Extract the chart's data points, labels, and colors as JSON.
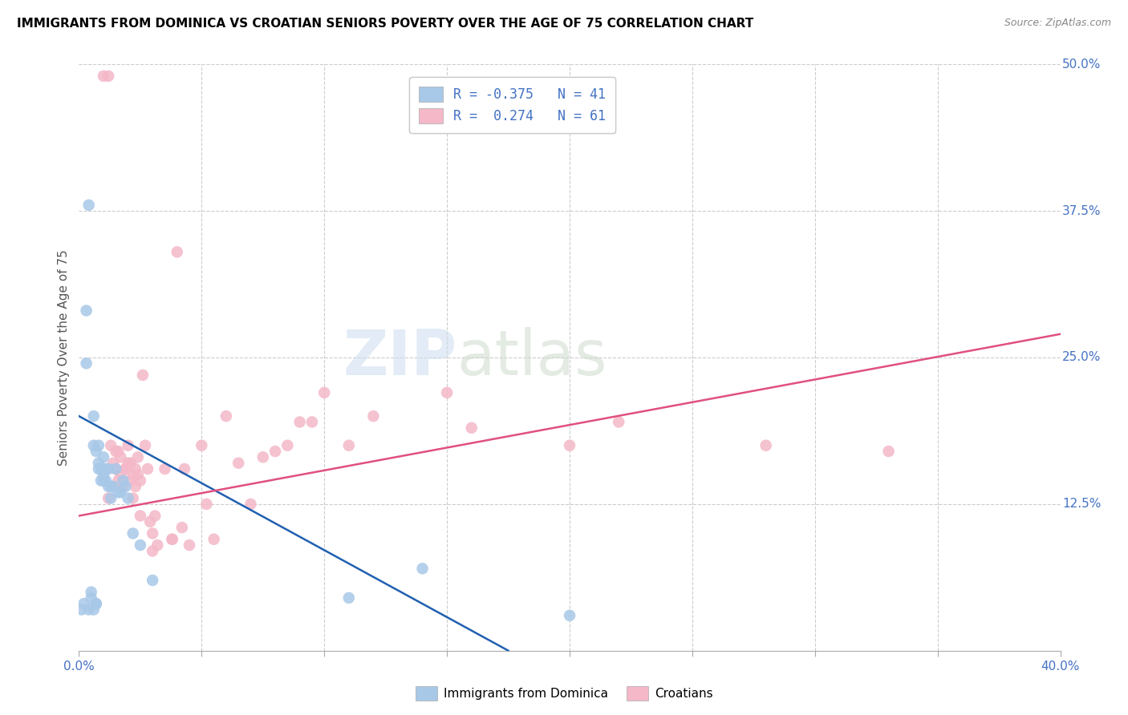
{
  "title": "IMMIGRANTS FROM DOMINICA VS CROATIAN SENIORS POVERTY OVER THE AGE OF 75 CORRELATION CHART",
  "source": "Source: ZipAtlas.com",
  "ylabel": "Seniors Poverty Over the Age of 75",
  "xlim": [
    0.0,
    0.4
  ],
  "ylim": [
    0.0,
    0.5
  ],
  "yticks_right": [
    0.125,
    0.25,
    0.375,
    0.5
  ],
  "yticklabels_right": [
    "12.5%",
    "25.0%",
    "37.5%",
    "50.0%"
  ],
  "legend_blue_label": "R = -0.375   N = 41",
  "legend_pink_label": "R =  0.274   N = 61",
  "legend1_label": "Immigrants from Dominica",
  "legend2_label": "Croatians",
  "blue_color": "#a8c8e8",
  "pink_color": "#f4b8c8",
  "blue_line_color": "#2060b0",
  "pink_line_color": "#e05080",
  "watermark_zip": "ZIP",
  "watermark_atlas": "atlas",
  "blue_scatter_x": [
    0.001,
    0.002,
    0.003,
    0.003,
    0.004,
    0.004,
    0.005,
    0.005,
    0.006,
    0.006,
    0.006,
    0.007,
    0.007,
    0.007,
    0.008,
    0.008,
    0.008,
    0.009,
    0.009,
    0.01,
    0.01,
    0.01,
    0.011,
    0.011,
    0.012,
    0.012,
    0.013,
    0.013,
    0.014,
    0.015,
    0.016,
    0.017,
    0.018,
    0.019,
    0.02,
    0.022,
    0.025,
    0.03,
    0.11,
    0.14,
    0.2
  ],
  "blue_scatter_y": [
    0.035,
    0.04,
    0.245,
    0.29,
    0.38,
    0.035,
    0.045,
    0.05,
    0.175,
    0.2,
    0.035,
    0.04,
    0.17,
    0.04,
    0.155,
    0.16,
    0.175,
    0.145,
    0.155,
    0.165,
    0.145,
    0.15,
    0.145,
    0.155,
    0.14,
    0.155,
    0.13,
    0.14,
    0.14,
    0.155,
    0.135,
    0.135,
    0.145,
    0.14,
    0.13,
    0.1,
    0.09,
    0.06,
    0.045,
    0.07,
    0.03
  ],
  "pink_scatter_x": [
    0.01,
    0.012,
    0.012,
    0.013,
    0.014,
    0.015,
    0.015,
    0.016,
    0.016,
    0.017,
    0.017,
    0.018,
    0.019,
    0.019,
    0.02,
    0.02,
    0.021,
    0.021,
    0.022,
    0.022,
    0.023,
    0.023,
    0.024,
    0.024,
    0.025,
    0.025,
    0.026,
    0.027,
    0.028,
    0.029,
    0.03,
    0.03,
    0.031,
    0.032,
    0.035,
    0.038,
    0.038,
    0.04,
    0.042,
    0.043,
    0.045,
    0.05,
    0.052,
    0.055,
    0.06,
    0.065,
    0.07,
    0.075,
    0.08,
    0.085,
    0.09,
    0.095,
    0.1,
    0.11,
    0.12,
    0.15,
    0.16,
    0.2,
    0.22,
    0.28,
    0.33
  ],
  "pink_scatter_y": [
    0.49,
    0.49,
    0.13,
    0.175,
    0.16,
    0.155,
    0.17,
    0.145,
    0.17,
    0.15,
    0.165,
    0.14,
    0.155,
    0.155,
    0.16,
    0.175,
    0.145,
    0.16,
    0.15,
    0.13,
    0.155,
    0.14,
    0.15,
    0.165,
    0.145,
    0.115,
    0.235,
    0.175,
    0.155,
    0.11,
    0.1,
    0.085,
    0.115,
    0.09,
    0.155,
    0.095,
    0.095,
    0.34,
    0.105,
    0.155,
    0.09,
    0.175,
    0.125,
    0.095,
    0.2,
    0.16,
    0.125,
    0.165,
    0.17,
    0.175,
    0.195,
    0.195,
    0.22,
    0.175,
    0.2,
    0.22,
    0.19,
    0.175,
    0.195,
    0.175,
    0.17
  ],
  "blue_line_x": [
    0.0,
    0.175
  ],
  "blue_line_y": [
    0.2,
    0.0
  ],
  "pink_line_x": [
    0.0,
    0.4
  ],
  "pink_line_y": [
    0.115,
    0.27
  ]
}
